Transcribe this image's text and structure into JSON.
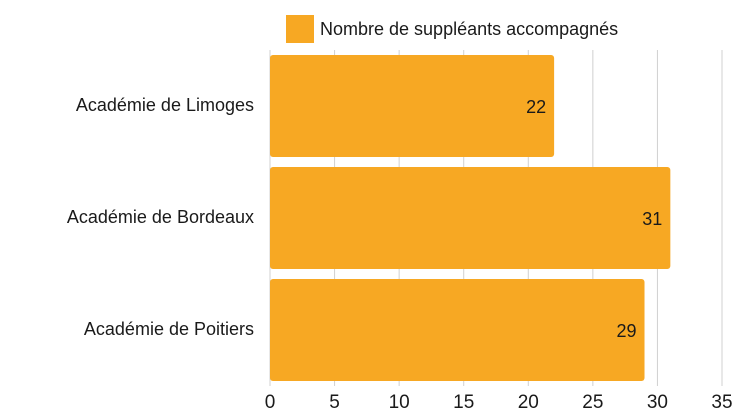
{
  "chart_data": {
    "type": "bar",
    "categories": [
      "Académie de Limoges",
      "Académie de Bordeaux",
      "Académie de Poitiers"
    ],
    "series": [
      {
        "name": "Nombre de suppléants accompagnés",
        "color": "#f7a823",
        "values": [
          22,
          31,
          29
        ]
      }
    ],
    "xlim": [
      0,
      35
    ],
    "xticks": [
      0,
      5,
      10,
      15,
      20,
      25,
      30,
      35
    ],
    "grid": true
  }
}
